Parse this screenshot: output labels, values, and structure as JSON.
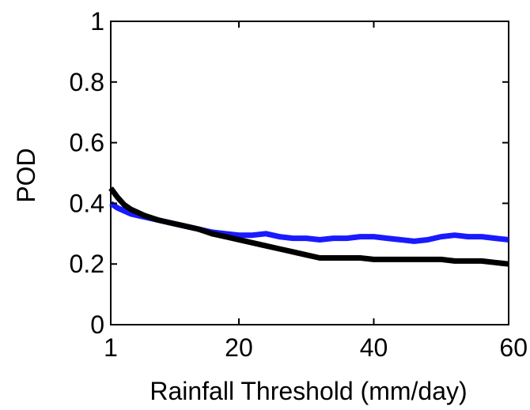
{
  "chart_data": {
    "type": "line",
    "title": "",
    "xlabel": "Rainfall Threshold (mm/day)",
    "ylabel": "POD",
    "xlim": [
      1,
      60
    ],
    "ylim": [
      0,
      1
    ],
    "x_ticks": [
      1,
      20,
      40,
      60
    ],
    "x_tick_labels": [
      "1",
      "20",
      "40",
      "60"
    ],
    "y_ticks": [
      0,
      0.2,
      0.4,
      0.6,
      0.8,
      1
    ],
    "y_tick_labels": [
      "0",
      "0.2",
      "0.4",
      "0.6",
      "0.8",
      "1"
    ],
    "grid": false,
    "legend": "none",
    "series": [
      {
        "color": "#1a1aff",
        "x": [
          1,
          2,
          3,
          4,
          5,
          6,
          8,
          10,
          12,
          14,
          16,
          18,
          20,
          22,
          24,
          26,
          28,
          30,
          32,
          34,
          36,
          38,
          40,
          42,
          44,
          46,
          48,
          50,
          52,
          54,
          56,
          58,
          60
        ],
        "y": [
          0.4,
          0.385,
          0.375,
          0.365,
          0.36,
          0.355,
          0.345,
          0.335,
          0.325,
          0.315,
          0.305,
          0.3,
          0.295,
          0.295,
          0.3,
          0.29,
          0.285,
          0.285,
          0.28,
          0.285,
          0.285,
          0.29,
          0.29,
          0.285,
          0.28,
          0.275,
          0.28,
          0.29,
          0.295,
          0.29,
          0.29,
          0.285,
          0.28
        ]
      },
      {
        "color": "#000000",
        "x": [
          1,
          2,
          3,
          4,
          5,
          6,
          8,
          10,
          12,
          14,
          16,
          18,
          20,
          22,
          24,
          26,
          28,
          30,
          32,
          34,
          36,
          38,
          40,
          42,
          44,
          46,
          48,
          50,
          52,
          54,
          56,
          58,
          60
        ],
        "y": [
          0.45,
          0.42,
          0.395,
          0.38,
          0.37,
          0.36,
          0.345,
          0.335,
          0.325,
          0.315,
          0.3,
          0.29,
          0.28,
          0.27,
          0.26,
          0.25,
          0.24,
          0.23,
          0.22,
          0.22,
          0.22,
          0.22,
          0.215,
          0.215,
          0.215,
          0.215,
          0.215,
          0.215,
          0.21,
          0.21,
          0.21,
          0.205,
          0.2
        ]
      }
    ]
  }
}
